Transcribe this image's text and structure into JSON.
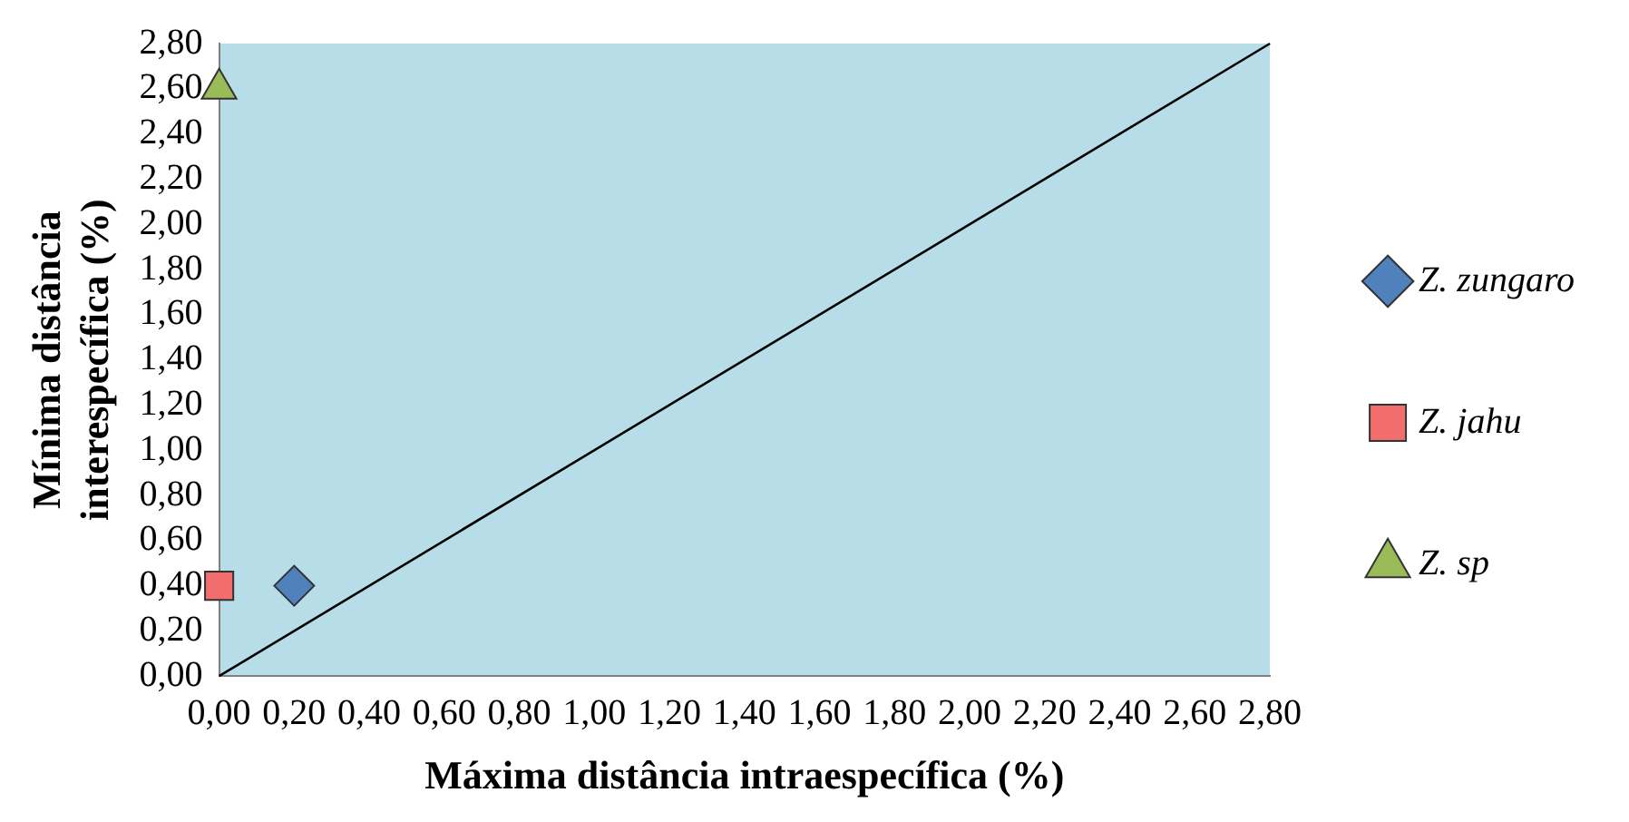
{
  "chart_data": {
    "type": "scatter",
    "xlabel": "Máxima distância intraespecífica (%)",
    "ylabel": "Mínima distância interespecífica (%)",
    "xlim": [
      0,
      2.8
    ],
    "ylim": [
      0,
      2.8
    ],
    "xticks": [
      {
        "value": 0,
        "label": "0,00"
      },
      {
        "value": 0.2,
        "label": "0,20"
      },
      {
        "value": 0.4,
        "label": "0,40"
      },
      {
        "value": 0.6,
        "label": "0,60"
      },
      {
        "value": 0.8,
        "label": "0,80"
      },
      {
        "value": 1,
        "label": "1,00"
      },
      {
        "value": 1.2,
        "label": "1,20"
      },
      {
        "value": 1.4,
        "label": "1,40"
      },
      {
        "value": 1.6,
        "label": "1,60"
      },
      {
        "value": 1.8,
        "label": "1,80"
      },
      {
        "value": 2,
        "label": "2,00"
      },
      {
        "value": 2.2,
        "label": "2,20"
      },
      {
        "value": 2.4,
        "label": "2,40"
      },
      {
        "value": 2.6,
        "label": "2,60"
      },
      {
        "value": 2.8,
        "label": "2,80"
      }
    ],
    "yticks": [
      {
        "value": 0,
        "label": "0,00"
      },
      {
        "value": 0.2,
        "label": "0,20"
      },
      {
        "value": 0.4,
        "label": "0,40"
      },
      {
        "value": 0.6,
        "label": "0,60"
      },
      {
        "value": 0.8,
        "label": "0,80"
      },
      {
        "value": 1,
        "label": "1,00"
      },
      {
        "value": 1.2,
        "label": "1,20"
      },
      {
        "value": 1.4,
        "label": "1,40"
      },
      {
        "value": 1.6,
        "label": "1,60"
      },
      {
        "value": 1.8,
        "label": "1,80"
      },
      {
        "value": 2,
        "label": "2,00"
      },
      {
        "value": 2.2,
        "label": "2,20"
      },
      {
        "value": 2.4,
        "label": "2,40"
      },
      {
        "value": 2.6,
        "label": "2,60"
      },
      {
        "value": 2.8,
        "label": "2,80"
      }
    ],
    "grid": false,
    "legend": "right",
    "series": [
      {
        "name": "Z. zungaro",
        "color": "#4f81bd",
        "marker": "diamond",
        "x": [
          0.2
        ],
        "values": [
          0.4
        ]
      },
      {
        "name": "Z. jahu",
        "color": "#f26d6d",
        "marker": "square",
        "x": [
          0
        ],
        "values": [
          0.4
        ]
      },
      {
        "name": "Z. sp",
        "color": "#9bbb59",
        "marker": "triangle",
        "x": [
          0
        ],
        "values": [
          2.6
        ]
      },
      {
        "type": "line",
        "color": "#000000",
        "marker": "none",
        "x": [
          0,
          2.8
        ],
        "values": [
          0,
          2.8
        ]
      }
    ]
  }
}
